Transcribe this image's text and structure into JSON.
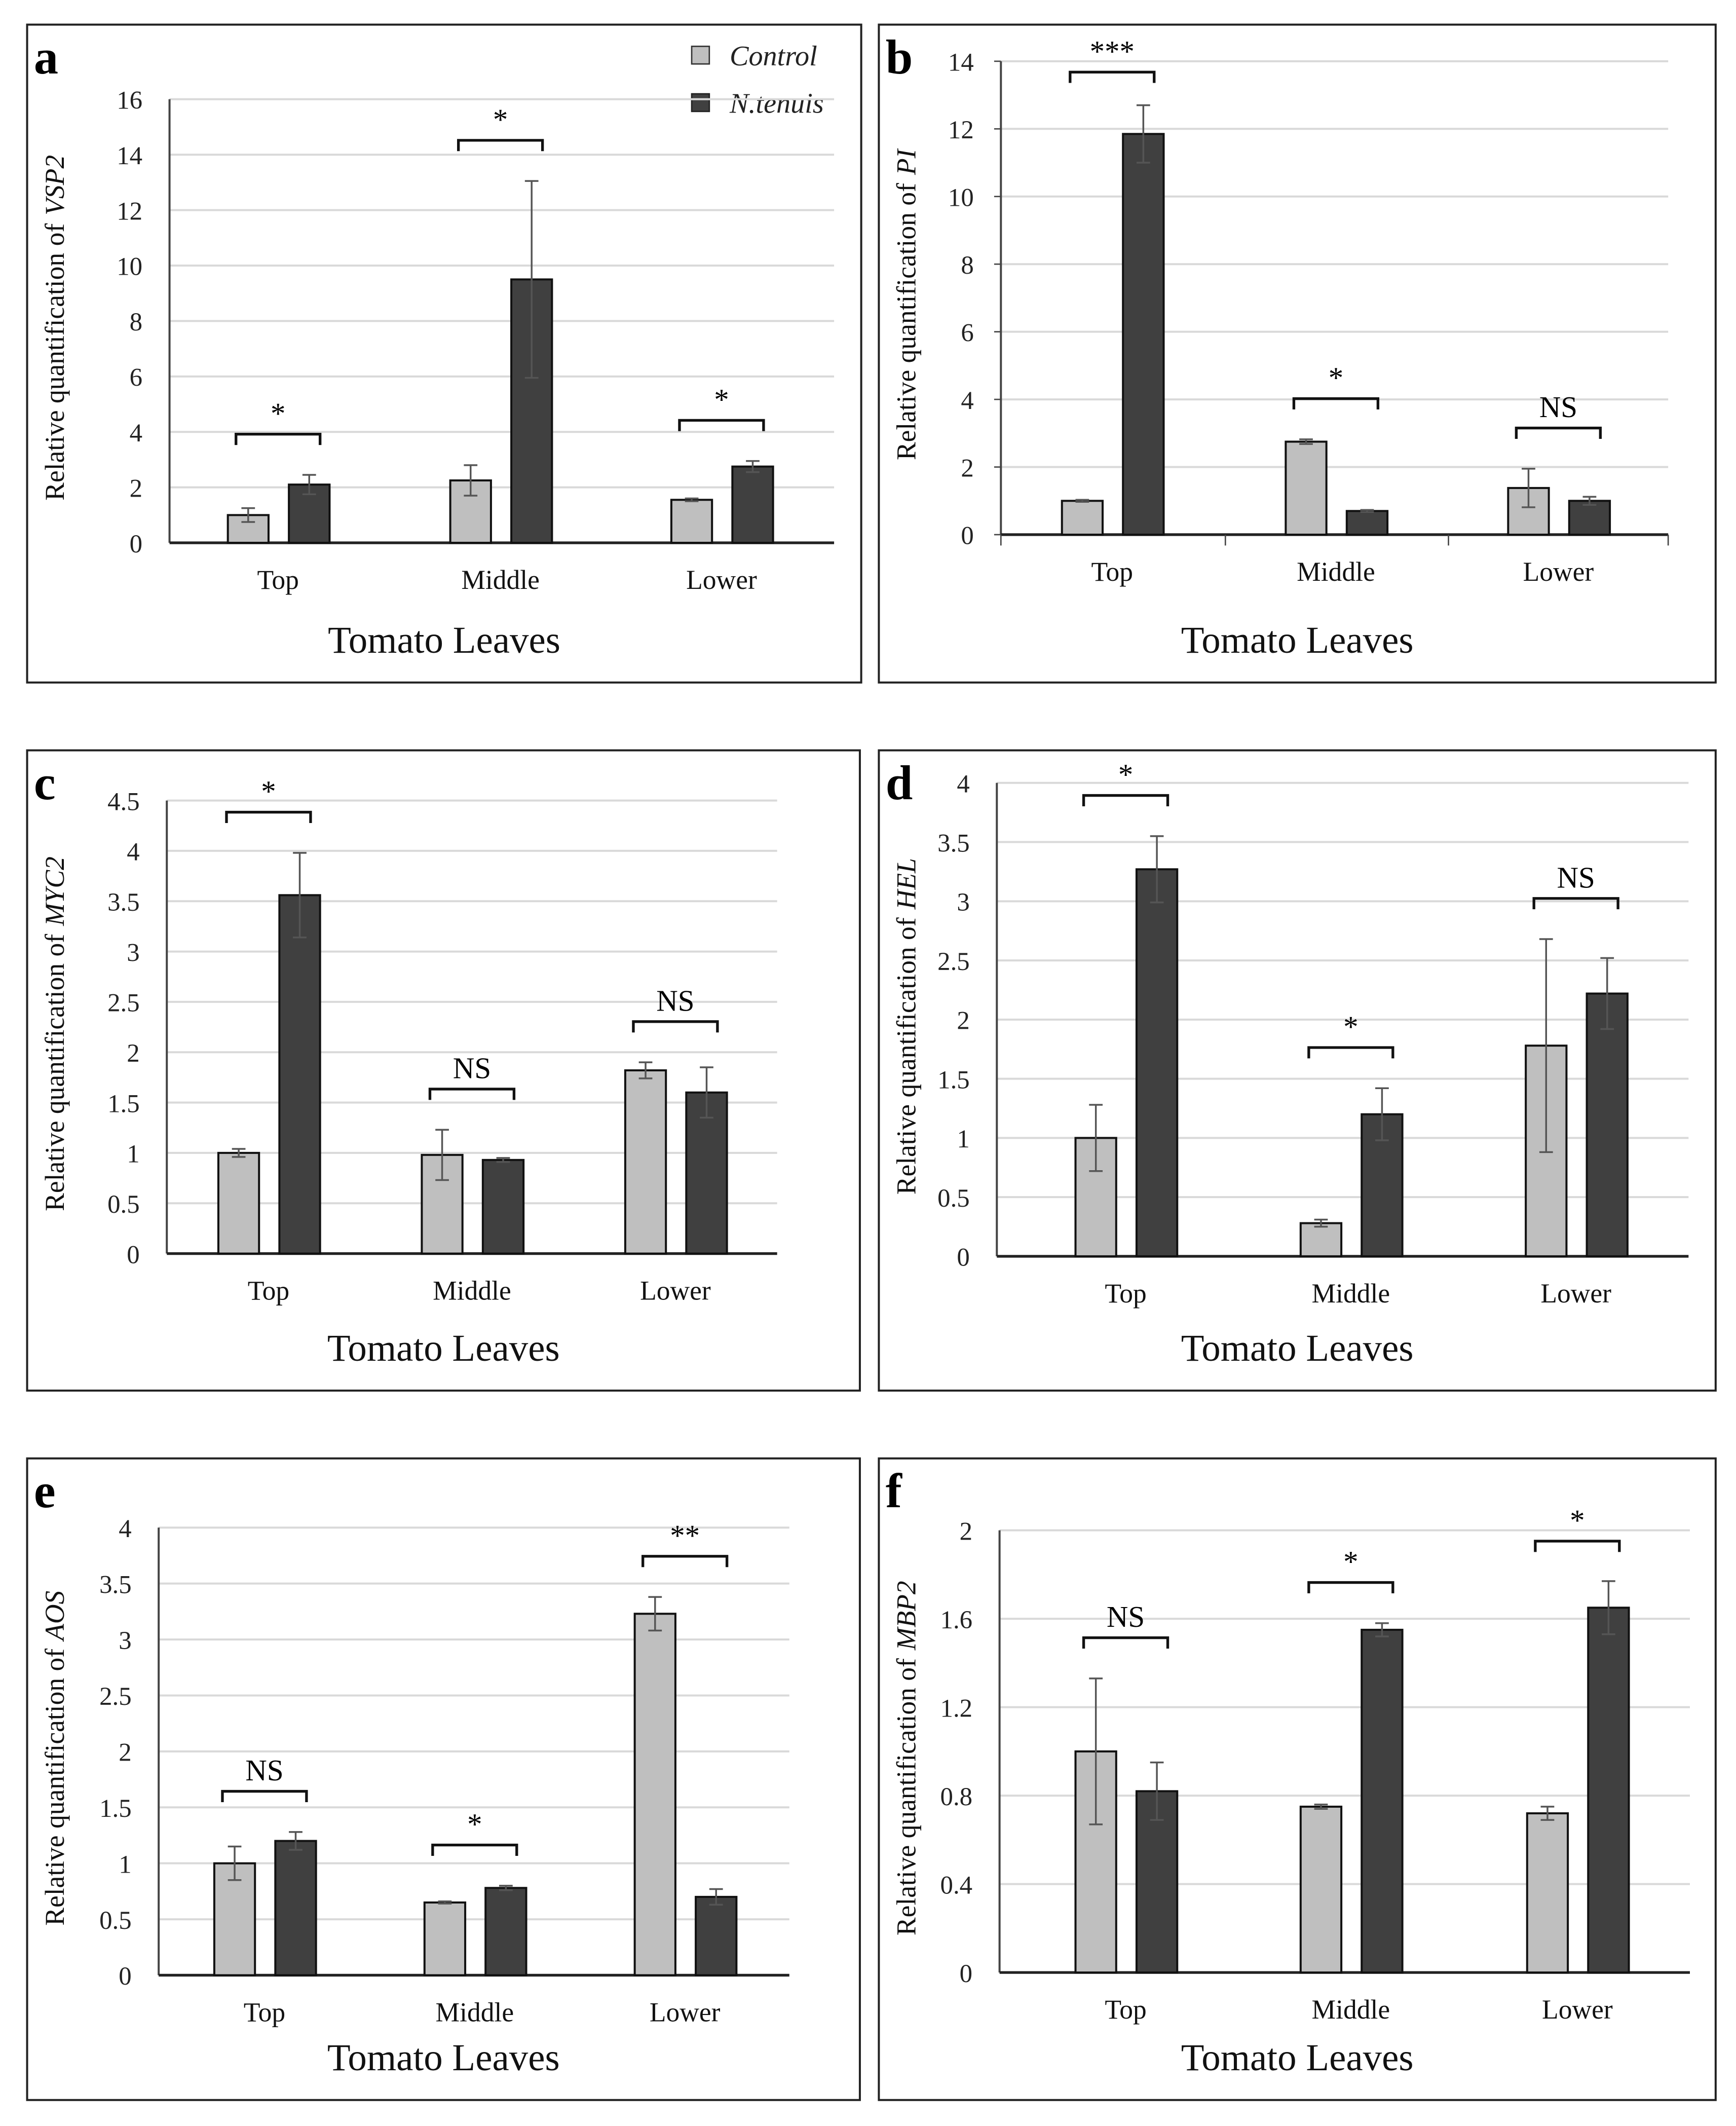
{
  "legend": {
    "control": "Control",
    "treatment": "N.tenuis",
    "control_color": "#bfbfbf",
    "treatment_color": "#404040"
  },
  "chart_data": [
    {
      "panel": "a",
      "type": "bar",
      "xlabel": "Tomato Leaves",
      "ylabel_prefix": "Relative quantification of",
      "gene": "VSP2",
      "categories": [
        "Top",
        "Middle",
        "Lower"
      ],
      "ylim": [
        0,
        16
      ],
      "yticks": [
        "0",
        "2",
        "4",
        "6",
        "8",
        "10",
        "12",
        "14",
        "16"
      ],
      "grid": true,
      "series": [
        {
          "name": "Control",
          "values": [
            1.0,
            2.25,
            1.55
          ],
          "errors": [
            0.25,
            0.55,
            0.05
          ]
        },
        {
          "name": "N.tenuis",
          "values": [
            2.1,
            9.5,
            2.75
          ],
          "errors": [
            0.35,
            3.55,
            0.2
          ]
        }
      ],
      "significance": [
        "*",
        "*",
        "*"
      ]
    },
    {
      "panel": "b",
      "type": "bar",
      "xlabel": "Tomato Leaves",
      "ylabel_prefix": "Relative quantification of",
      "gene": "PI",
      "categories": [
        "Top",
        "Middle",
        "Lower"
      ],
      "ylim": [
        0,
        14
      ],
      "yticks": [
        "0",
        "2",
        "4",
        "6",
        "8",
        "10",
        "12",
        "14"
      ],
      "grid": true,
      "series": [
        {
          "name": "Control",
          "values": [
            1.0,
            2.75,
            1.38
          ],
          "errors": [
            0.03,
            0.07,
            0.57
          ]
        },
        {
          "name": "N.tenuis",
          "values": [
            11.85,
            0.7,
            1.0
          ],
          "errors": [
            0.85,
            0.03,
            0.12
          ]
        }
      ],
      "significance": [
        "***",
        "*",
        "NS"
      ]
    },
    {
      "panel": "c",
      "type": "bar",
      "xlabel": "Tomato Leaves",
      "ylabel_prefix": "Relative quantification of",
      "gene": "MYC2",
      "categories": [
        "Top",
        "Middle",
        "Lower"
      ],
      "ylim": [
        0,
        4.5
      ],
      "yticks": [
        "0",
        "0.5",
        "1",
        "1.5",
        "2",
        "2.5",
        "3",
        "3.5",
        "4",
        "4.5"
      ],
      "grid": false,
      "series": [
        {
          "name": "Control",
          "values": [
            1.0,
            0.98,
            1.82
          ],
          "errors": [
            0.04,
            0.25,
            0.08
          ]
        },
        {
          "name": "N.tenuis",
          "values": [
            3.56,
            0.93,
            1.6
          ],
          "errors": [
            0.42,
            0.02,
            0.25
          ]
        }
      ],
      "significance": [
        "*",
        "NS",
        "NS"
      ]
    },
    {
      "panel": "d",
      "type": "bar",
      "xlabel": "Tomato Leaves",
      "ylabel_prefix": "Relative quantification of",
      "gene": "HEL",
      "categories": [
        "Top",
        "Middle",
        "Lower"
      ],
      "ylim": [
        0,
        4
      ],
      "yticks": [
        "0",
        "0.5",
        "1",
        "1.5",
        "2",
        "2.5",
        "3",
        "3.5",
        "4"
      ],
      "grid": false,
      "series": [
        {
          "name": "Control",
          "values": [
            1.0,
            0.28,
            1.78
          ],
          "errors": [
            0.28,
            0.03,
            0.9
          ]
        },
        {
          "name": "N.tenuis",
          "values": [
            3.27,
            1.2,
            2.22
          ],
          "errors": [
            0.28,
            0.22,
            0.3
          ]
        }
      ],
      "significance": [
        "*",
        "*",
        "NS"
      ]
    },
    {
      "panel": "e",
      "type": "bar",
      "xlabel": "Tomato Leaves",
      "ylabel_prefix": "Relative quantification of",
      "gene": "AOS",
      "categories": [
        "Top",
        "Middle",
        "Lower"
      ],
      "ylim": [
        0,
        4
      ],
      "yticks": [
        "0",
        "0.5",
        "1",
        "1.5",
        "2",
        "2.5",
        "3",
        "3.5",
        "4"
      ],
      "grid": false,
      "series": [
        {
          "name": "Control",
          "values": [
            1.0,
            0.65,
            3.23
          ],
          "errors": [
            0.15,
            0.01,
            0.15
          ]
        },
        {
          "name": "N.tenuis",
          "values": [
            1.2,
            0.78,
            0.7
          ],
          "errors": [
            0.08,
            0.02,
            0.07
          ]
        }
      ],
      "significance": [
        "NS",
        "*",
        "**"
      ]
    },
    {
      "panel": "f",
      "type": "bar",
      "xlabel": "Tomato Leaves",
      "ylabel_prefix": "Relative quantification of",
      "gene": "MBP2",
      "categories": [
        "Top",
        "Middle",
        "Lower"
      ],
      "ylim": [
        0,
        2
      ],
      "yticks": [
        "0",
        "0.4",
        "0.8",
        "1.2",
        "1.6",
        "2"
      ],
      "grid": true,
      "series": [
        {
          "name": "Control",
          "values": [
            1.0,
            0.75,
            0.72
          ],
          "errors": [
            0.33,
            0.01,
            0.03
          ]
        },
        {
          "name": "N.tenuis",
          "values": [
            0.82,
            1.55,
            1.65
          ],
          "errors": [
            0.13,
            0.03,
            0.12
          ]
        }
      ],
      "significance": [
        "NS",
        "*",
        "*"
      ]
    }
  ]
}
